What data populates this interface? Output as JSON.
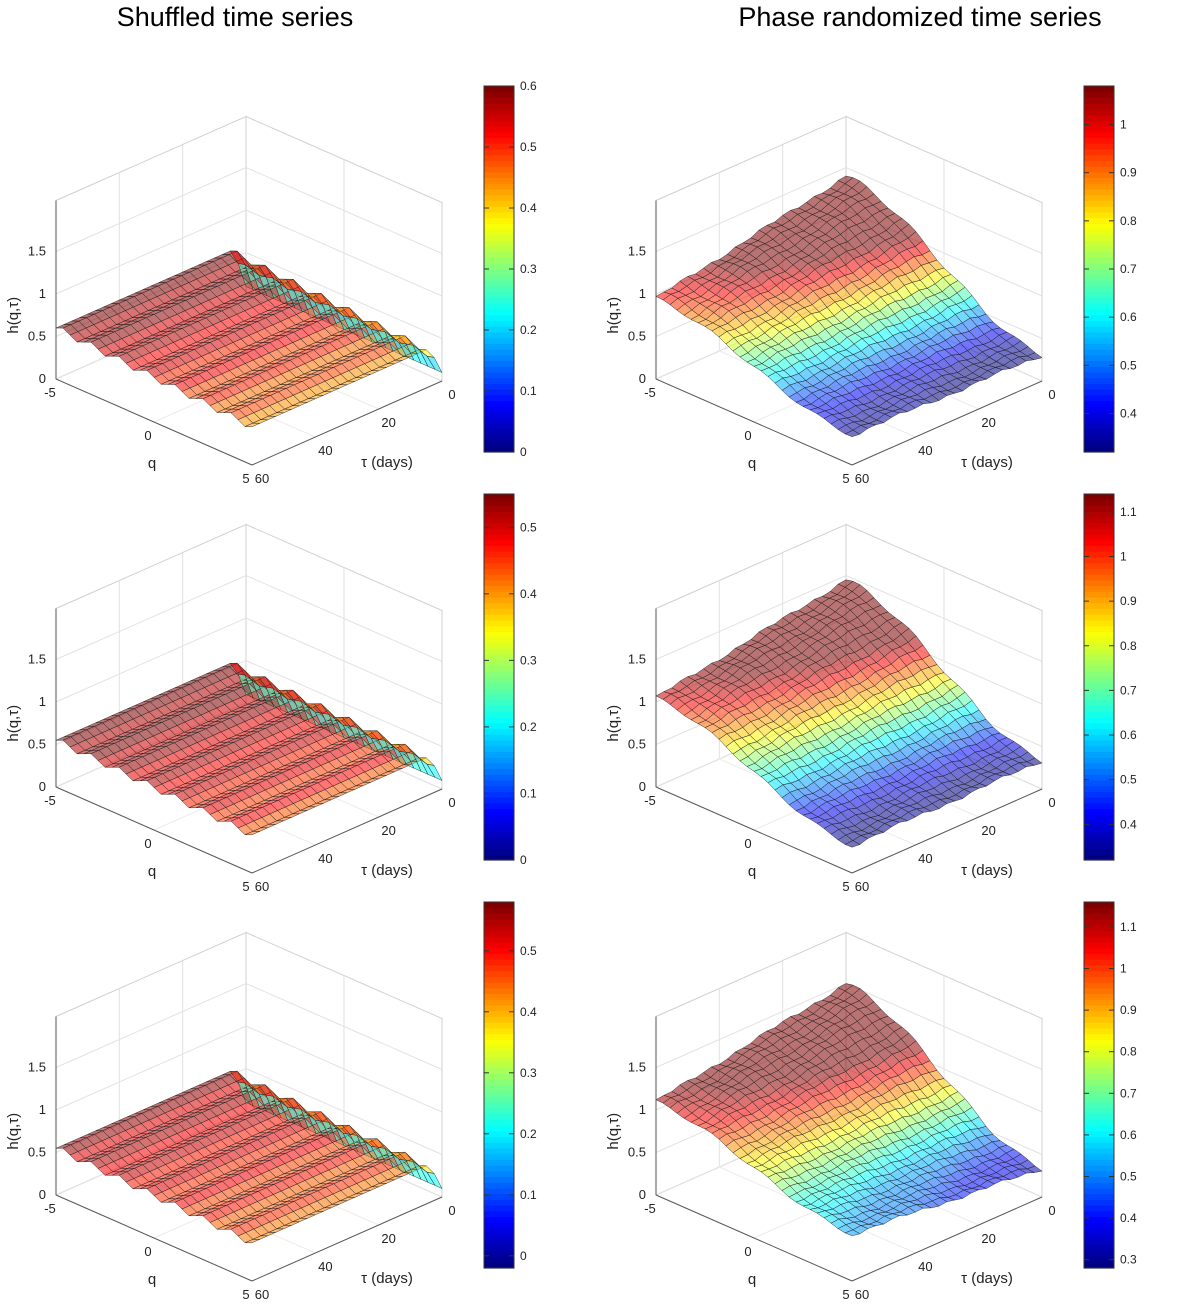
{
  "titles": {
    "left": "Shuffled time series",
    "right": "Phase randomized time series"
  },
  "axis_text": {
    "xlabel": "q",
    "ylabel": "τ (days)",
    "zlabel": "h(q,τ)",
    "x_ticks": [
      "-5",
      "0",
      "5"
    ],
    "y_ticks": [
      "0",
      "20",
      "40",
      "60"
    ],
    "z_ticks": [
      "0",
      "0.5",
      "1",
      "1.5"
    ]
  },
  "chart_data": [
    {
      "type": "surface",
      "panel": "left-1",
      "column": "Shuffled time series",
      "xlabel": "q",
      "ylabel": "τ (days)",
      "zlabel": "h(q,τ)",
      "xlim": [
        -5,
        5
      ],
      "ylim": [
        0,
        60
      ],
      "zlim": [
        0,
        1.5
      ],
      "shape": "shuffled",
      "h_center": 0.5,
      "h_neg_q": 0.6,
      "h_pos_q": 0.45,
      "h_tau0": 0.1,
      "colorbar": {
        "cmin": 0,
        "cmax": 0.6,
        "ticks": [
          "0",
          "0.1",
          "0.2",
          "0.3",
          "0.4",
          "0.5",
          "0.6"
        ]
      }
    },
    {
      "type": "surface",
      "panel": "left-2",
      "column": "Shuffled time series",
      "xlabel": "q",
      "ylabel": "τ (days)",
      "zlabel": "h(q,τ)",
      "xlim": [
        -5,
        5
      ],
      "ylim": [
        0,
        60
      ],
      "zlim": [
        0,
        1.5
      ],
      "shape": "shuffled",
      "h_center": 0.5,
      "h_neg_q": 0.55,
      "h_pos_q": 0.45,
      "h_tau0": 0.1,
      "colorbar": {
        "cmin": 0,
        "cmax": 0.55,
        "ticks": [
          "0",
          "0.1",
          "0.2",
          "0.3",
          "0.4",
          "0.5"
        ]
      }
    },
    {
      "type": "surface",
      "panel": "left-3",
      "column": "Shuffled time series",
      "xlabel": "q",
      "ylabel": "τ (days)",
      "zlabel": "h(q,τ)",
      "xlim": [
        -5,
        5
      ],
      "ylim": [
        0,
        60
      ],
      "zlim": [
        0,
        1.5
      ],
      "shape": "shuffled",
      "h_center": 0.5,
      "h_neg_q": 0.55,
      "h_pos_q": 0.45,
      "h_tau0": 0.1,
      "colorbar": {
        "cmin": -0.02,
        "cmax": 0.58,
        "ticks": [
          "0",
          "0.1",
          "0.2",
          "0.3",
          "0.4",
          "0.5"
        ]
      }
    },
    {
      "type": "surface",
      "panel": "right-1",
      "column": "Phase randomized time series",
      "xlabel": "q",
      "ylabel": "τ (days)",
      "zlabel": "h(q,τ)",
      "xlim": [
        -5,
        5
      ],
      "ylim": [
        0,
        60
      ],
      "zlim": [
        0,
        1.5
      ],
      "shape": "phase",
      "h_corner_neg_q_tau0": 1.4,
      "h_corner_neg_q_tau60": 0.95,
      "h_corner_pos_q_tau0": 0.3,
      "h_corner_pos_q_tau60": 0.35,
      "colorbar": {
        "cmin": 0.32,
        "cmax": 1.08,
        "ticks": [
          "0.4",
          "0.5",
          "0.6",
          "0.7",
          "0.8",
          "0.9",
          "1"
        ]
      }
    },
    {
      "type": "surface",
      "panel": "right-2",
      "column": "Phase randomized time series",
      "xlabel": "q",
      "ylabel": "τ (days)",
      "zlabel": "h(q,τ)",
      "xlim": [
        -5,
        5
      ],
      "ylim": [
        0,
        60
      ],
      "zlim": [
        0,
        1.5
      ],
      "shape": "phase",
      "h_corner_neg_q_tau0": 1.45,
      "h_corner_neg_q_tau60": 1.05,
      "h_corner_pos_q_tau0": 0.33,
      "h_corner_pos_q_tau60": 0.32,
      "colorbar": {
        "cmin": 0.32,
        "cmax": 1.14,
        "ticks": [
          "0.4",
          "0.5",
          "0.6",
          "0.7",
          "0.8",
          "0.9",
          "1",
          "1.1"
        ]
      }
    },
    {
      "type": "surface",
      "panel": "right-3",
      "column": "Phase randomized time series",
      "xlabel": "q",
      "ylabel": "τ (days)",
      "zlabel": "h(q,τ)",
      "xlim": [
        -5,
        5
      ],
      "ylim": [
        0,
        60
      ],
      "zlim": [
        0,
        1.5
      ],
      "shape": "phase",
      "h_corner_neg_q_tau0": 1.5,
      "h_corner_neg_q_tau60": 1.1,
      "h_corner_pos_q_tau0": 0.33,
      "h_corner_pos_q_tau60": 0.55,
      "colorbar": {
        "cmin": 0.28,
        "cmax": 1.16,
        "ticks": [
          "0.3",
          "0.4",
          "0.5",
          "0.6",
          "0.7",
          "0.8",
          "0.9",
          "1",
          "1.1"
        ]
      }
    }
  ]
}
